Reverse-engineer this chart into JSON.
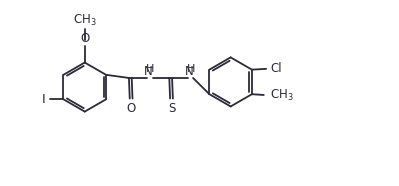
{
  "bg_color": "#ffffff",
  "line_color": "#2a2a3a",
  "font_size": 8.5,
  "bond_lw": 1.3,
  "xlim": [
    -0.3,
    9.2
  ],
  "ylim": [
    0.5,
    5.2
  ],
  "ring_r": 0.62
}
